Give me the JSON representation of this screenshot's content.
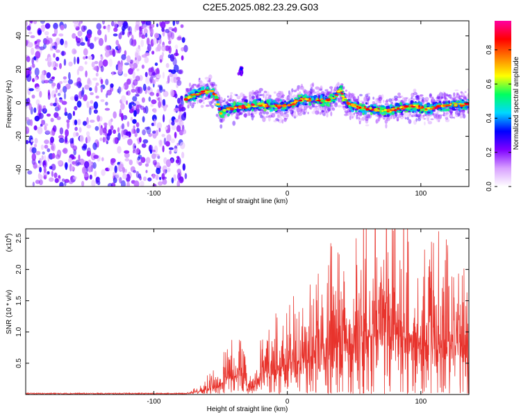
{
  "title": "C2E5.2025.082.23.29.G03",
  "chart_data": [
    {
      "type": "heatmap",
      "xlabel": "Height of straight line (km)",
      "ylabel": "Frequency (Hz)",
      "xlim": [
        -196,
        136
      ],
      "ylim": [
        -50,
        49
      ],
      "xticks": [
        -100,
        0,
        100
      ],
      "yticks": [
        -40,
        -20,
        0,
        20,
        40
      ],
      "colorbar": {
        "label": "Normalized spectral amplitude",
        "range": [
          0,
          0.97
        ],
        "ticks": [
          "0.0",
          "0.2",
          "0.4",
          "0.6",
          "0.8"
        ],
        "colors": [
          "#ffffff",
          "#d8a0ff",
          "#8000ff",
          "#0000ff",
          "#00d8ff",
          "#00ff60",
          "#ffff00",
          "#ff8000",
          "#ff0000",
          "#ff00a0"
        ]
      },
      "noise_region_x": [
        -196,
        -76
      ],
      "ridge": {
        "x": [
          -76,
          -72,
          -66,
          -58,
          -54,
          -50,
          -45,
          -40,
          -30,
          -20,
          -10,
          0,
          5,
          10,
          20,
          30,
          36,
          40,
          42,
          46,
          55,
          65,
          75,
          85,
          95,
          105,
          115,
          125,
          136
        ],
        "freq": [
          2,
          4,
          6,
          7,
          5,
          -6,
          -4,
          -3,
          -2,
          -1,
          -2,
          -2,
          0,
          2,
          2,
          1,
          4,
          8,
          3,
          -1,
          -3,
          -4,
          -5,
          -3,
          -2,
          -4,
          -2,
          -1,
          -1
        ]
      },
      "blob": {
        "x": -35,
        "freq": 19
      }
    },
    {
      "type": "line",
      "xlabel": "Height of straight line (km)",
      "ylabel": "SNR (10 * v/v)",
      "scale_label": "(x10",
      "scale_exp": "4",
      "xlim": [
        -196,
        136
      ],
      "ylim": [
        0,
        2.65
      ],
      "xticks": [
        -100,
        0,
        100
      ],
      "yticks": [
        0.5,
        1.0,
        1.5,
        2.0,
        2.5
      ],
      "ytick_labels": [
        "0.5",
        "1.0",
        "1.5",
        "2.0",
        "2.5"
      ],
      "series": [
        {
          "color": "#e8332c",
          "x": [
            -196,
            -76,
            -70,
            -60,
            -50,
            -44,
            -40,
            -35,
            -30,
            -25,
            -20,
            -15,
            -10,
            0,
            10,
            20,
            30,
            40,
            50,
            60,
            70,
            80,
            90,
            100,
            110,
            120,
            130,
            136
          ],
          "envelope": [
            0.02,
            0.02,
            0.06,
            0.2,
            0.35,
            0.65,
            0.45,
            0.8,
            0.25,
            0.2,
            0.7,
            0.9,
            0.95,
            1.0,
            1.2,
            1.35,
            1.5,
            1.75,
            1.9,
            2.1,
            2.3,
            2.2,
            2.1,
            2.0,
            1.95,
            1.8,
            1.7,
            1.7
          ]
        }
      ]
    }
  ]
}
